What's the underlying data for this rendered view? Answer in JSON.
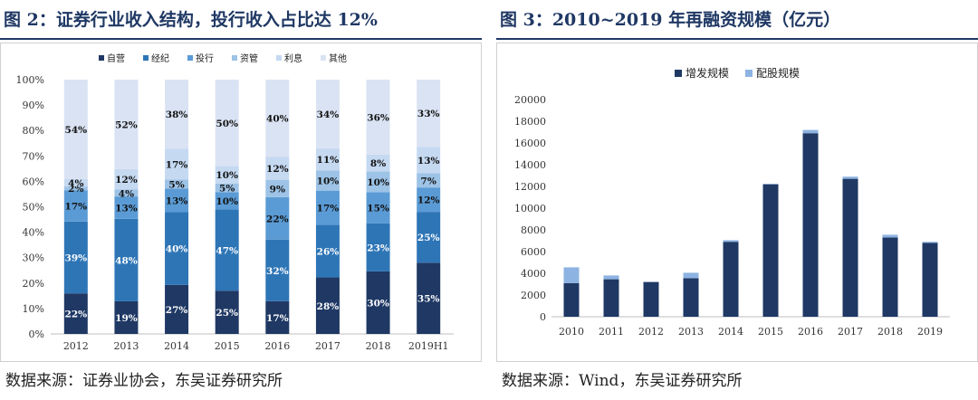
{
  "left": {
    "title": "图 2：证券行业收入结构，投行收入占比达 12%",
    "source": "数据来源：证券业协会，东吴证券研究所"
  },
  "right": {
    "title": "图 3：2010~2019 年再融资规模（亿元）",
    "source": "数据来源：Wind，东吴证券研究所"
  },
  "chart_data": [
    {
      "type": "bar",
      "stacked": "percent",
      "categories": [
        "2012",
        "2013",
        "2014",
        "2015",
        "2016",
        "2017",
        "2018",
        "2019H1"
      ],
      "series": [
        {
          "name": "自营",
          "color": "#1f3864",
          "values": [
            22,
            19,
            27,
            25,
            17,
            28,
            30,
            35
          ]
        },
        {
          "name": "经纪",
          "color": "#2e75b6",
          "values": [
            39,
            48,
            40,
            47,
            32,
            26,
            23,
            25
          ]
        },
        {
          "name": "投行",
          "color": "#5b9bd5",
          "values": [
            17,
            13,
            13,
            10,
            22,
            17,
            15,
            12
          ]
        },
        {
          "name": "资管",
          "color": "#9dc3e6",
          "values": [
            2,
            4,
            5,
            5,
            9,
            10,
            10,
            7
          ]
        },
        {
          "name": "利息",
          "color": "#c5d9f1",
          "values": [
            4,
            12,
            17,
            10,
            12,
            11,
            8,
            13
          ]
        },
        {
          "name": "其他",
          "color": "#dae3f3",
          "values": [
            54,
            52,
            38,
            50,
            40,
            34,
            36,
            33
          ]
        }
      ],
      "ylim": [
        0,
        100
      ],
      "ytick_labels": [
        "0%",
        "10%",
        "20%",
        "30%",
        "40%",
        "50%",
        "60%",
        "70%",
        "80%",
        "90%",
        "100%"
      ],
      "legend": "top",
      "grid": false
    },
    {
      "type": "bar",
      "stacked": true,
      "categories": [
        "2010",
        "2011",
        "2012",
        "2013",
        "2014",
        "2015",
        "2016",
        "2017",
        "2018",
        "2019"
      ],
      "series": [
        {
          "name": "增发规模",
          "color": "#1f3864",
          "values": [
            3100,
            3450,
            3200,
            3550,
            6900,
            12200,
            16900,
            12700,
            7300,
            6800
          ]
        },
        {
          "name": "配股规模",
          "color": "#8db3e2",
          "values": [
            1450,
            350,
            0,
            500,
            150,
            30,
            300,
            200,
            250,
            100
          ]
        }
      ],
      "ylim": [
        0,
        20000
      ],
      "yticks": [
        0,
        2000,
        4000,
        6000,
        8000,
        10000,
        12000,
        14000,
        16000,
        18000,
        20000
      ],
      "legend": "top",
      "grid": false
    }
  ]
}
